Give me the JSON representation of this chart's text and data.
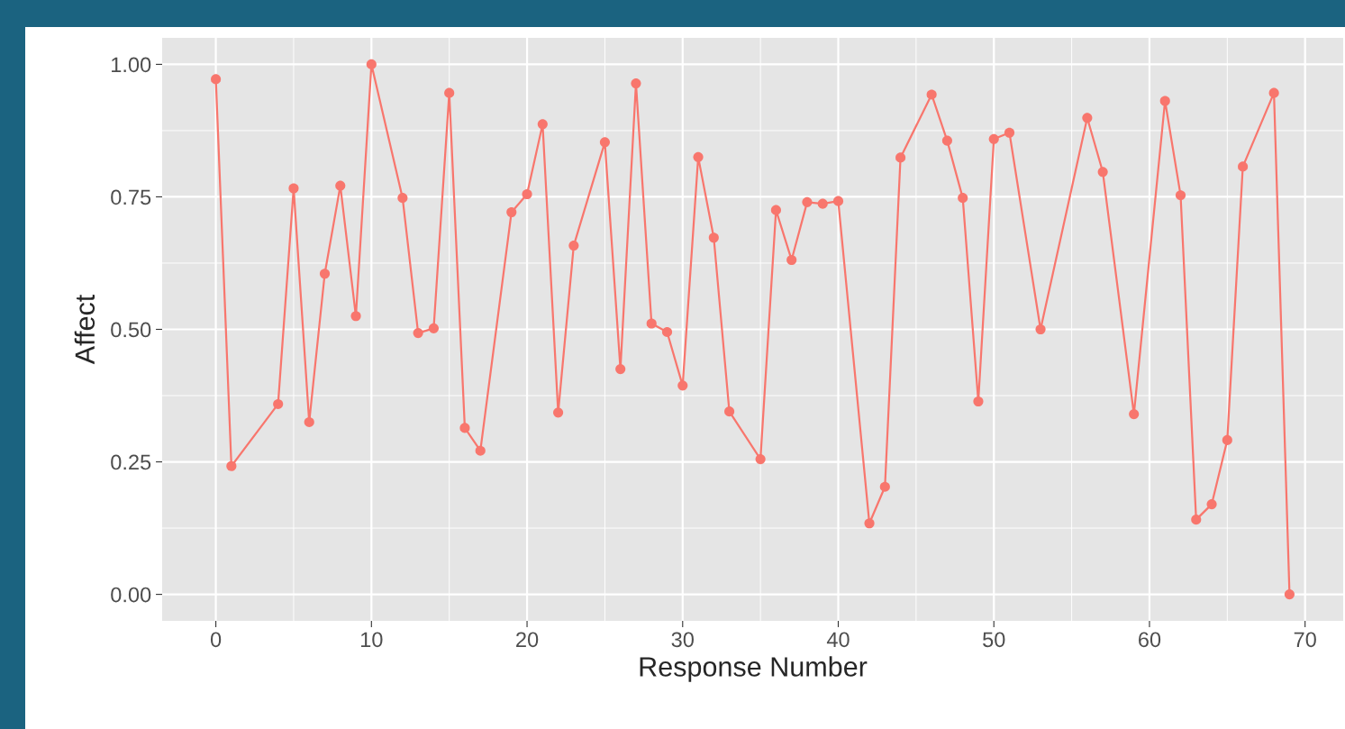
{
  "chart_data": {
    "type": "line",
    "xlabel": "Response Number",
    "ylabel": "Affect",
    "x": [
      0,
      1,
      4,
      5,
      6,
      7,
      8,
      9,
      10,
      12,
      13,
      14,
      15,
      16,
      17,
      19,
      20,
      21,
      22,
      23,
      25,
      26,
      27,
      28,
      29,
      30,
      31,
      32,
      33,
      35,
      36,
      37,
      38,
      39,
      40,
      42,
      43,
      44,
      46,
      47,
      48,
      49,
      50,
      51,
      53,
      56,
      57,
      59,
      61,
      62,
      63,
      64,
      65,
      66,
      68,
      69
    ],
    "series": [
      {
        "color": "#f8766d",
        "values": [
          0.972,
          0.242,
          0.359,
          0.766,
          0.325,
          0.605,
          0.771,
          0.525,
          1.0,
          0.748,
          0.493,
          0.502,
          0.946,
          0.314,
          0.271,
          0.721,
          0.755,
          0.887,
          0.343,
          0.658,
          0.853,
          0.425,
          0.964,
          0.511,
          0.495,
          0.394,
          0.825,
          0.673,
          0.345,
          0.255,
          0.725,
          0.631,
          0.74,
          0.737,
          0.742,
          0.134,
          0.203,
          0.824,
          0.943,
          0.856,
          0.748,
          0.364,
          0.859,
          0.871,
          0.5,
          0.899,
          0.797,
          0.34,
          0.931,
          0.753,
          0.141,
          0.17,
          0.291,
          0.807,
          0.946,
          0.0
        ]
      }
    ],
    "xlim": [
      -3.45,
      72.45
    ],
    "ylim": [
      -0.05,
      1.05
    ],
    "xticks": [
      0,
      10,
      20,
      30,
      40,
      50,
      60,
      70
    ],
    "yticks": [
      {
        "value": 0,
        "label": "0.00"
      },
      {
        "value": 0.25,
        "label": "0.25"
      },
      {
        "value": 0.5,
        "label": "0.50"
      },
      {
        "value": 0.75,
        "label": "0.75"
      },
      {
        "value": 1,
        "label": "1.00"
      }
    ],
    "grid": true,
    "marker": "circle",
    "line_style": "solid",
    "legend": false
  }
}
